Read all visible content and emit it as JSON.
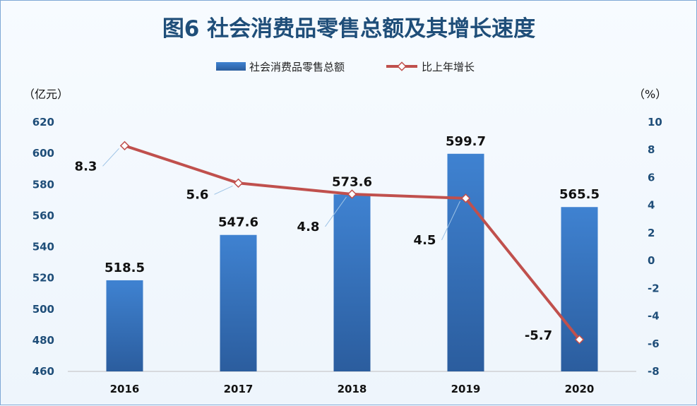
{
  "chart_data": {
    "type": "bar",
    "title": "图6  社会消费品零售总额及其增长速度",
    "categories": [
      "2016",
      "2017",
      "2018",
      "2019",
      "2020"
    ],
    "series": [
      {
        "name": "社会消费品零售总额",
        "type": "bar",
        "axis": "left",
        "values": [
          518.5,
          547.6,
          573.6,
          599.7,
          565.5
        ]
      },
      {
        "name": "比上年增长",
        "type": "line",
        "axis": "right",
        "values": [
          8.3,
          5.6,
          4.8,
          4.5,
          -5.7
        ]
      }
    ],
    "bar_labels": [
      "518.5",
      "547.6",
      "573.6",
      "599.7",
      "565.5"
    ],
    "line_labels": [
      "8.3",
      "5.6",
      "4.8",
      "4.5",
      "-5.7"
    ],
    "ylabel_left": "（亿元）",
    "ylabel_right": "（%）",
    "ylim_left": [
      460,
      620
    ],
    "yticks_left": [
      "620",
      "600",
      "580",
      "560",
      "540",
      "520",
      "500",
      "480",
      "460"
    ],
    "ylim_right": [
      -8,
      10
    ],
    "yticks_right": [
      "10",
      "8",
      "6",
      "4",
      "2",
      "0",
      "-2",
      "-4",
      "-6",
      "-8"
    ],
    "legend_position": "top-center",
    "grid": false,
    "colors": {
      "bar": "#3c7cc9",
      "bar_dark": "#2a5c9c",
      "line": "#c0504d",
      "axis_text": "#1f4e79",
      "title": "#1f4e79"
    }
  }
}
